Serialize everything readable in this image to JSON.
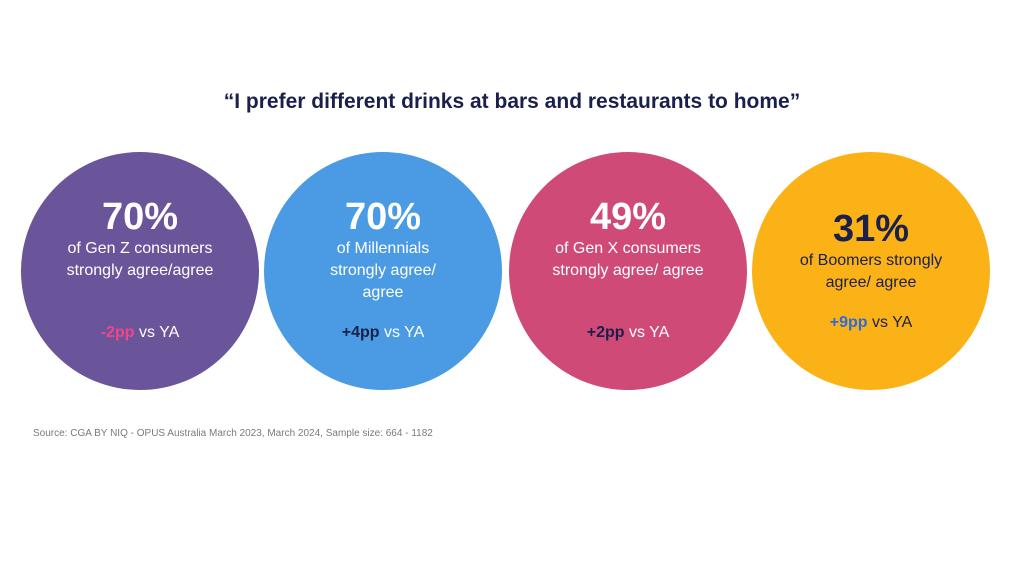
{
  "title": "“I prefer different drinks at bars and restaurants to home”",
  "circles": [
    {
      "percent": "70%",
      "description": "of Gen Z consumers strongly agree/agree",
      "delta": "-2pp",
      "suffix": " vs YA",
      "color": "#6a549a"
    },
    {
      "percent": "70%",
      "description": "of Millennials strongly agree/ agree",
      "delta": "+4pp",
      "suffix": " vs YA",
      "color": "#4a9be3"
    },
    {
      "percent": "49%",
      "description": "of Gen X consumers strongly agree/ agree",
      "delta": "+2pp",
      "suffix": " vs YA",
      "color": "#cf4a77"
    },
    {
      "percent": "31%",
      "description": "of Boomers strongly agree/ agree",
      "delta": "+9pp",
      "suffix": " vs YA",
      "color": "#fbb217"
    }
  ],
  "source": "Source: CGA BY NIQ - OPUS Australia March 2023, March 2024, Sample size: 664 - 1182"
}
